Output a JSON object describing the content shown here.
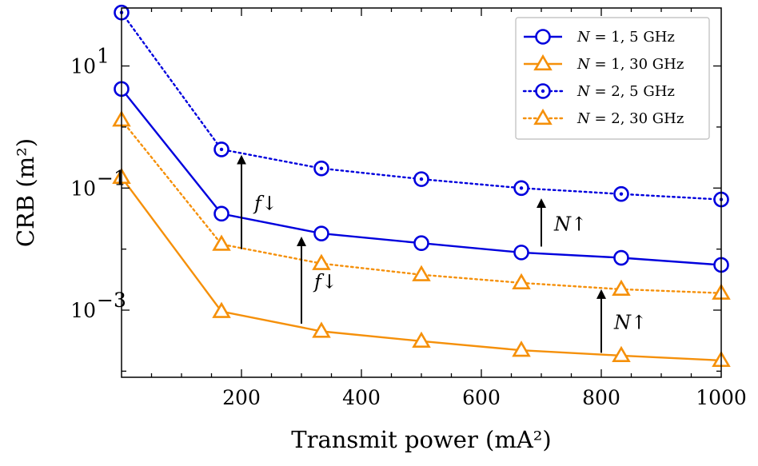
{
  "chart_data": {
    "type": "line",
    "xlabel": "Transmit power (mA²)",
    "ylabel": "CRB (m²)",
    "xlim": [
      0,
      1000
    ],
    "ylim_log10": [
      -4.1,
      1.95
    ],
    "yscale": "log",
    "x_ticks": [
      200,
      400,
      600,
      800,
      1000
    ],
    "x_tick_labels": [
      "200",
      "400",
      "600",
      "800",
      "1000"
    ],
    "y_ticks": [
      10,
      0.1,
      0.001
    ],
    "y_tick_labels": [
      {
        "base": "10",
        "exp": "1"
      },
      {
        "base": "10",
        "exp": "−1"
      },
      {
        "base": "10",
        "exp": "−3"
      }
    ],
    "legend_position": "top-right",
    "x": [
      0,
      166.7,
      333.3,
      500,
      666.7,
      833.3,
      1000
    ],
    "series": [
      {
        "name": "N = 1, 5 GHz",
        "legend_var": "N",
        "legend_rest": " = 1, 5 GHz",
        "color": "#0000dd",
        "dash": "solid",
        "marker": "circle",
        "values": [
          4.2,
          0.038,
          0.018,
          0.0125,
          0.0088,
          0.0072,
          0.0055
        ]
      },
      {
        "name": "N = 1, 30 GHz",
        "legend_var": "N",
        "legend_rest": " = 1, 30 GHz",
        "color": "#f5900a",
        "dash": "solid",
        "marker": "triangle",
        "values": [
          0.15,
          0.00095,
          0.00045,
          0.00031,
          0.00022,
          0.00018,
          0.00015
        ]
      },
      {
        "name": "N = 2, 5 GHz",
        "legend_var": "N",
        "legend_rest": " = 2, 5 GHz",
        "color": "#0000dd",
        "dash": "dotted",
        "marker": "circle-dot",
        "values": [
          75,
          0.43,
          0.21,
          0.14,
          0.1,
          0.08,
          0.065
        ]
      },
      {
        "name": "N = 2, 30 GHz",
        "legend_var": "N",
        "legend_rest": " = 2, 30 GHz",
        "color": "#f5900a",
        "dash": "dotted",
        "marker": "triangle",
        "values": [
          1.3,
          0.012,
          0.0058,
          0.0038,
          0.0028,
          0.0022,
          0.0019
        ]
      }
    ],
    "annotations": [
      {
        "text": "f↓",
        "arrow_x": 200,
        "arrow_from": 0.01,
        "arrow_to": 0.35
      },
      {
        "text": "f↓",
        "arrow_x": 300,
        "arrow_from": 0.0006,
        "arrow_to": 0.016
      },
      {
        "text": "N↑",
        "arrow_x": 700,
        "arrow_from": 0.011,
        "arrow_to": 0.068
      },
      {
        "text": "N↑",
        "arrow_x": 800,
        "arrow_from": 0.0002,
        "arrow_to": 0.0022
      }
    ]
  }
}
